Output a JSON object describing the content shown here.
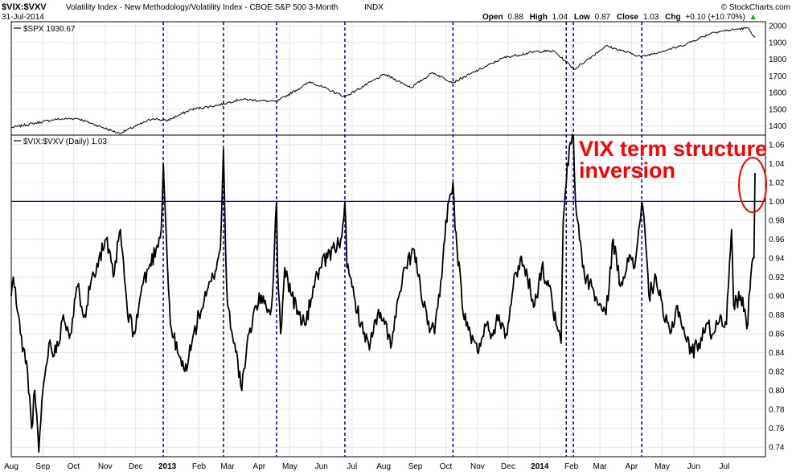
{
  "header": {
    "symbol": "$VIX:$VXV",
    "description": "Volatility Index - New Methodology/Volatility Index - CBOE S&P 500 3-Month",
    "exchange": "INDX",
    "date": "31-Jul-2014",
    "ohlc": {
      "open_label": "Open",
      "open": "0.88",
      "high_label": "High",
      "high": "1.04",
      "low_label": "Low",
      "low": "0.87",
      "close_label": "Close",
      "close": "1.03",
      "chg_label": "Chg",
      "chg": "+0.10 (+10.70%)"
    },
    "up_arrow": "▲",
    "copyright": "© StockCharts.com"
  },
  "annotation": {
    "line1": "VIX term structure",
    "line2": "inversion",
    "color": "#ff0000"
  },
  "chart_data": [
    {
      "type": "line",
      "panel": "upper",
      "legend": "$SPX 1930.67",
      "legend_marker": "line",
      "y_ticks": [
        1400,
        1500,
        1600,
        1700,
        1800,
        1900,
        2000
      ],
      "ylim": [
        1345,
        2025
      ],
      "anchors": [
        [
          "2012-08-01",
          1390
        ],
        [
          "2012-09-14",
          1440
        ],
        [
          "2012-10-05",
          1445
        ],
        [
          "2012-11-15",
          1355
        ],
        [
          "2012-12-18",
          1445
        ],
        [
          "2012-12-31",
          1430
        ],
        [
          "2013-01-25",
          1500
        ],
        [
          "2013-02-20",
          1525
        ],
        [
          "2013-03-14",
          1560
        ],
        [
          "2013-04-18",
          1545
        ],
        [
          "2013-05-21",
          1665
        ],
        [
          "2013-06-24",
          1575
        ],
        [
          "2013-08-02",
          1710
        ],
        [
          "2013-08-28",
          1630
        ],
        [
          "2013-09-18",
          1720
        ],
        [
          "2013-10-08",
          1660
        ],
        [
          "2013-11-27",
          1810
        ],
        [
          "2013-12-31",
          1848
        ],
        [
          "2014-01-15",
          1848
        ],
        [
          "2014-02-04",
          1740
        ],
        [
          "2014-03-07",
          1880
        ],
        [
          "2014-04-11",
          1815
        ],
        [
          "2014-05-20",
          1880
        ],
        [
          "2014-06-20",
          1962
        ],
        [
          "2014-07-24",
          1988
        ],
        [
          "2014-07-31",
          1931
        ]
      ],
      "last_value": 1930.67,
      "grid": "horizontal"
    },
    {
      "type": "line",
      "panel": "lower",
      "legend": "$VIX:$VXV (Daily) 1.03",
      "legend_marker": "line",
      "y_ticks": [
        0.74,
        0.76,
        0.78,
        0.8,
        0.82,
        0.84,
        0.86,
        0.88,
        0.9,
        0.92,
        0.94,
        0.96,
        0.98,
        1.0,
        1.02,
        1.04,
        1.06
      ],
      "ylim": [
        0.73,
        1.07
      ],
      "reference_line": 1.0,
      "anchors": [
        [
          "2012-08-01",
          0.9
        ],
        [
          "2012-08-03",
          0.92
        ],
        [
          "2012-08-10",
          0.86
        ],
        [
          "2012-08-17",
          0.82
        ],
        [
          "2012-08-21",
          0.76
        ],
        [
          "2012-08-24",
          0.8
        ],
        [
          "2012-08-28",
          0.735
        ],
        [
          "2012-08-31",
          0.79
        ],
        [
          "2012-09-07",
          0.85
        ],
        [
          "2012-09-14",
          0.84
        ],
        [
          "2012-09-21",
          0.88
        ],
        [
          "2012-09-28",
          0.86
        ],
        [
          "2012-10-05",
          0.91
        ],
        [
          "2012-10-12",
          0.88
        ],
        [
          "2012-10-19",
          0.92
        ],
        [
          "2012-10-26",
          0.94
        ],
        [
          "2012-11-02",
          0.96
        ],
        [
          "2012-11-09",
          0.92
        ],
        [
          "2012-11-16",
          0.97
        ],
        [
          "2012-11-23",
          0.88
        ],
        [
          "2012-11-30",
          0.86
        ],
        [
          "2012-12-07",
          0.91
        ],
        [
          "2012-12-14",
          0.93
        ],
        [
          "2012-12-21",
          0.95
        ],
        [
          "2012-12-26",
          0.97
        ],
        [
          "2012-12-28",
          1.04
        ],
        [
          "2013-01-02",
          0.91
        ],
        [
          "2013-01-04",
          0.87
        ],
        [
          "2013-01-11",
          0.84
        ],
        [
          "2013-01-18",
          0.82
        ],
        [
          "2013-01-25",
          0.85
        ],
        [
          "2013-02-01",
          0.88
        ],
        [
          "2013-02-08",
          0.9
        ],
        [
          "2013-02-15",
          0.92
        ],
        [
          "2013-02-22",
          0.95
        ],
        [
          "2013-02-25",
          1.055
        ],
        [
          "2013-02-27",
          0.95
        ],
        [
          "2013-03-01",
          0.89
        ],
        [
          "2013-03-08",
          0.85
        ],
        [
          "2013-03-15",
          0.8
        ],
        [
          "2013-03-22",
          0.86
        ],
        [
          "2013-03-29",
          0.89
        ],
        [
          "2013-04-05",
          0.9
        ],
        [
          "2013-04-12",
          0.88
        ],
        [
          "2013-04-15",
          0.92
        ],
        [
          "2013-04-18",
          1.0
        ],
        [
          "2013-04-19",
          0.93
        ],
        [
          "2013-04-22",
          0.86
        ],
        [
          "2013-04-26",
          0.93
        ],
        [
          "2013-05-03",
          0.9
        ],
        [
          "2013-05-10",
          0.88
        ],
        [
          "2013-05-17",
          0.87
        ],
        [
          "2013-05-24",
          0.91
        ],
        [
          "2013-05-31",
          0.93
        ],
        [
          "2013-06-07",
          0.94
        ],
        [
          "2013-06-14",
          0.95
        ],
        [
          "2013-06-20",
          0.96
        ],
        [
          "2013-06-24",
          1.0
        ],
        [
          "2013-06-26",
          0.93
        ],
        [
          "2013-07-03",
          0.9
        ],
        [
          "2013-07-12",
          0.86
        ],
        [
          "2013-07-19",
          0.85
        ],
        [
          "2013-07-26",
          0.88
        ],
        [
          "2013-08-02",
          0.87
        ],
        [
          "2013-08-09",
          0.85
        ],
        [
          "2013-08-16",
          0.9
        ],
        [
          "2013-08-23",
          0.93
        ],
        [
          "2013-08-30",
          0.95
        ],
        [
          "2013-09-06",
          0.91
        ],
        [
          "2013-09-13",
          0.87
        ],
        [
          "2013-09-20",
          0.86
        ],
        [
          "2013-09-27",
          0.92
        ],
        [
          "2013-10-01",
          0.98
        ],
        [
          "2013-10-04",
          1.0
        ],
        [
          "2013-10-08",
          1.02
        ],
        [
          "2013-10-10",
          0.97
        ],
        [
          "2013-10-16",
          0.91
        ],
        [
          "2013-10-18",
          0.88
        ],
        [
          "2013-10-25",
          0.86
        ],
        [
          "2013-11-01",
          0.84
        ],
        [
          "2013-11-08",
          0.87
        ],
        [
          "2013-11-15",
          0.86
        ],
        [
          "2013-11-22",
          0.88
        ],
        [
          "2013-11-29",
          0.86
        ],
        [
          "2013-12-06",
          0.91
        ],
        [
          "2013-12-13",
          0.94
        ],
        [
          "2013-12-20",
          0.92
        ],
        [
          "2013-12-27",
          0.89
        ],
        [
          "2014-01-03",
          0.93
        ],
        [
          "2014-01-10",
          0.91
        ],
        [
          "2014-01-17",
          0.87
        ],
        [
          "2014-01-22",
          0.85
        ],
        [
          "2014-01-24",
          0.98
        ],
        [
          "2014-01-27",
          1.02
        ],
        [
          "2014-01-28",
          1.04
        ],
        [
          "2014-02-03",
          1.07
        ],
        [
          "2014-02-05",
          1.0
        ],
        [
          "2014-02-07",
          0.98
        ],
        [
          "2014-02-14",
          0.92
        ],
        [
          "2014-02-21",
          0.91
        ],
        [
          "2014-02-28",
          0.89
        ],
        [
          "2014-03-07",
          0.88
        ],
        [
          "2014-03-14",
          0.96
        ],
        [
          "2014-03-21",
          0.91
        ],
        [
          "2014-03-28",
          0.94
        ],
        [
          "2014-04-04",
          0.93
        ],
        [
          "2014-04-11",
          1.0
        ],
        [
          "2014-04-14",
          0.97
        ],
        [
          "2014-04-18",
          0.9
        ],
        [
          "2014-04-25",
          0.92
        ],
        [
          "2014-05-02",
          0.88
        ],
        [
          "2014-05-09",
          0.86
        ],
        [
          "2014-05-16",
          0.89
        ],
        [
          "2014-05-23",
          0.86
        ],
        [
          "2014-05-30",
          0.84
        ],
        [
          "2014-06-06",
          0.85
        ],
        [
          "2014-06-13",
          0.87
        ],
        [
          "2014-06-20",
          0.86
        ],
        [
          "2014-06-27",
          0.88
        ],
        [
          "2014-07-03",
          0.87
        ],
        [
          "2014-07-08",
          0.97
        ],
        [
          "2014-07-10",
          0.89
        ],
        [
          "2014-07-17",
          0.9
        ],
        [
          "2014-07-24",
          0.87
        ],
        [
          "2014-07-25",
          0.9
        ],
        [
          "2014-07-28",
          0.935
        ],
        [
          "2014-07-29",
          0.94
        ],
        [
          "2014-07-30",
          0.94
        ],
        [
          "2014-07-31",
          1.03
        ]
      ],
      "last_value": 1.03,
      "grid": "horizontal"
    }
  ],
  "x_axis": {
    "labels": [
      {
        "text": "Aug",
        "date": "2012-08-01",
        "bold": false
      },
      {
        "text": "Sep",
        "date": "2012-09-01",
        "bold": false
      },
      {
        "text": "Oct",
        "date": "2012-10-01",
        "bold": false
      },
      {
        "text": "Nov",
        "date": "2012-11-01",
        "bold": false
      },
      {
        "text": "Dec",
        "date": "2012-12-01",
        "bold": false
      },
      {
        "text": "2013",
        "date": "2013-01-01",
        "bold": true
      },
      {
        "text": "Feb",
        "date": "2013-02-01",
        "bold": false
      },
      {
        "text": "Mar",
        "date": "2013-03-01",
        "bold": false
      },
      {
        "text": "Apr",
        "date": "2013-04-01",
        "bold": false
      },
      {
        "text": "May",
        "date": "2013-05-01",
        "bold": false
      },
      {
        "text": "Jun",
        "date": "2013-06-01",
        "bold": false
      },
      {
        "text": "Jul",
        "date": "2013-07-01",
        "bold": false
      },
      {
        "text": "Aug",
        "date": "2013-08-01",
        "bold": false
      },
      {
        "text": "Sep",
        "date": "2013-09-01",
        "bold": false
      },
      {
        "text": "Oct",
        "date": "2013-10-01",
        "bold": false
      },
      {
        "text": "Nov",
        "date": "2013-11-01",
        "bold": false
      },
      {
        "text": "Dec",
        "date": "2013-12-01",
        "bold": false
      },
      {
        "text": "2014",
        "date": "2014-01-01",
        "bold": true
      },
      {
        "text": "Feb",
        "date": "2014-02-01",
        "bold": false
      },
      {
        "text": "Mar",
        "date": "2014-03-01",
        "bold": false
      },
      {
        "text": "Apr",
        "date": "2014-04-01",
        "bold": false
      },
      {
        "text": "May",
        "date": "2014-05-01",
        "bold": false
      },
      {
        "text": "Jun",
        "date": "2014-06-01",
        "bold": false
      },
      {
        "text": "Jul",
        "date": "2014-07-01",
        "bold": false
      }
    ],
    "range": [
      "2012-08-01",
      "2014-07-31"
    ]
  },
  "event_lines": {
    "color": "#0000cc",
    "style": "dashed",
    "dates": [
      "2012-12-28",
      "2013-02-25",
      "2013-04-18",
      "2013-06-24",
      "2013-10-08",
      "2014-01-27",
      "2014-02-03",
      "2014-04-11"
    ]
  },
  "colors": {
    "price_line": "#000000",
    "reference_line": "#000066",
    "grid": "#e6e6e6",
    "annotation": "#ff0000"
  }
}
